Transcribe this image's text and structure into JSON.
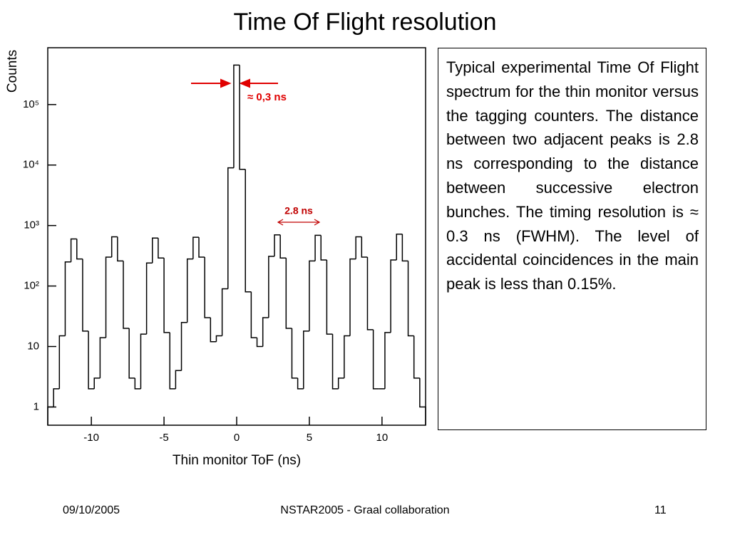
{
  "title": "Time Of Flight resolution",
  "description": "Typical experimental Time Of Flight spectrum for the thin monitor versus the tagging counters. The distance between two adjacent peaks is 2.8 ns corresponding to the distance between successive electron bunches. The timing resolution is ≈ 0.3 ns (FWHM). The level of accidental coincidences in the main peak is less than 0.15%.",
  "footer": {
    "date": "09/10/2005",
    "event": "NSTAR2005 - Graal collaboration",
    "page": "11"
  },
  "chart_data": {
    "type": "histogram",
    "x_label": "Thin monitor ToF (ns)",
    "y_label": "Counts",
    "annotations": [
      "≈ 0,3 ns",
      "2.8 ns"
    ],
    "color": "#000000",
    "log_y": true,
    "bins": [
      -13,
      -12.6,
      -12.2,
      -11.8,
      -11.4,
      -11,
      -10.6,
      -10.2,
      -9.8,
      -9.4,
      -9,
      -8.6,
      -8.2,
      -7.8,
      -7.4,
      -7,
      -6.6,
      -6.2,
      -5.8,
      -5.4,
      -5,
      -4.6,
      -4.2,
      -3.8,
      -3.4,
      -3,
      -2.6,
      -2.2,
      -1.8,
      -1.4,
      -1,
      -0.6,
      -0.2,
      0.2,
      0.6,
      1,
      1.4,
      1.8,
      2.2,
      2.6,
      3,
      3.4,
      3.8,
      4.2,
      4.6,
      5,
      5.4,
      5.8,
      6.2,
      6.6,
      7,
      7.4,
      7.8,
      8.2,
      8.6,
      9,
      9.4,
      9.8,
      10.2,
      10.6,
      11,
      11.4,
      11.8,
      12.2,
      12.6,
      13
    ],
    "values": [
      1,
      2,
      15,
      250,
      600,
      280,
      18,
      2,
      3,
      14,
      300,
      650,
      260,
      20,
      3,
      2,
      16,
      240,
      620,
      290,
      17,
      2,
      4,
      25,
      280,
      640,
      300,
      30,
      12,
      15,
      90,
      9000,
      450000,
      8500,
      80,
      14,
      10,
      30,
      310,
      700,
      290,
      20,
      3,
      2,
      18,
      260,
      690,
      270,
      16,
      2,
      3,
      15,
      280,
      650,
      300,
      19,
      2,
      2,
      17,
      270,
      720,
      260,
      15,
      3,
      1
    ],
    "xlim": [
      -13,
      13
    ],
    "xticks": [
      -10,
      -5,
      0,
      5,
      10
    ],
    "ylim": [
      0.5,
      870000
    ],
    "yticks": [
      1,
      10,
      {
        "value": 100,
        "label": "10²"
      },
      {
        "value": 1000,
        "label": "10³"
      },
      {
        "value": 10000,
        "label": "10⁴"
      },
      {
        "value": 100000,
        "label": "10⁵"
      }
    ]
  }
}
